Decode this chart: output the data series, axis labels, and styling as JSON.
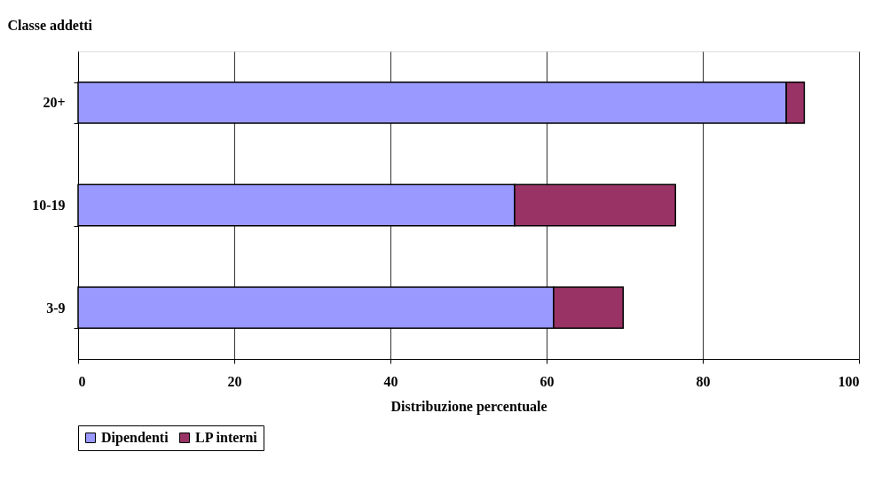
{
  "chart_data": {
    "type": "bar",
    "orientation": "horizontal",
    "stacked": true,
    "ylabel": "Classe addetti",
    "xlabel": "Distribuzione percentuale",
    "categories": [
      "20+",
      "10-19",
      "3-9"
    ],
    "series": [
      {
        "name": "Dipendenti",
        "color": "#9999ff",
        "values": [
          90.7,
          55.9,
          60.9
        ]
      },
      {
        "name": "LP interni",
        "color": "#993366",
        "values": [
          2.3,
          20.6,
          8.9
        ]
      }
    ],
    "xlim": [
      0,
      100
    ],
    "xticks": [
      0,
      20,
      40,
      60,
      80,
      100
    ],
    "grid": "x",
    "legend": "bottom"
  }
}
